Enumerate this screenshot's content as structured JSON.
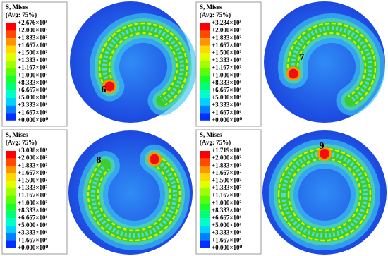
{
  "panels": [
    {
      "legend": {
        "title": "S, Mises",
        "subtitle": "(Avg: 75%)",
        "labels": [
          "+2.676×10⁸",
          "+2.000×10⁷",
          "+1.833×10⁷",
          "+1.667×10⁷",
          "+1.500×10⁷",
          "+1.333×10⁷",
          "+1.167×10⁷",
          "+1.000×10⁷",
          "+8.333×10⁶",
          "+6.667×10⁶",
          "+5.000×10⁶",
          "+3.333×10⁶",
          "+1.667×10⁶",
          "+0.000×10⁰"
        ]
      },
      "marker": "6"
    },
    {
      "legend": {
        "title": "S, Mises",
        "subtitle": "(Avg: 75%)",
        "labels": [
          "+3.234×10⁸",
          "+2.000×10⁷",
          "+1.833×10⁷",
          "+1.667×10⁷",
          "+1.500×10⁷",
          "+1.333×10⁷",
          "+1.167×10⁷",
          "+1.000×10⁷",
          "+8.333×10⁶",
          "+6.667×10⁶",
          "+5.000×10⁶",
          "+3.333×10⁶",
          "+1.667×10⁶",
          "+0.000×10⁰"
        ]
      },
      "marker": "7"
    },
    {
      "legend": {
        "title": "S, Mises",
        "subtitle": "(Avg: 75%)",
        "labels": [
          "+3.038×10⁸",
          "+2.000×10⁷",
          "+1.833×10⁷",
          "+1.667×10⁷",
          "+1.500×10⁷",
          "+1.333×10⁷",
          "+1.167×10⁷",
          "+1.000×10⁷",
          "+8.333×10⁶",
          "+6.667×10⁶",
          "+5.000×10⁶",
          "+3.333×10⁶",
          "+1.667×10⁶",
          "+0.000×10⁰"
        ]
      },
      "marker": "8"
    },
    {
      "legend": {
        "title": "S, Mises",
        "subtitle": "(Avg: 75%)",
        "labels": [
          "+1.719×10⁸",
          "+2.000×10⁷",
          "+1.833×10⁷",
          "+1.667×10⁷",
          "+1.500×10⁷",
          "+1.333×10⁷",
          "+1.167×10⁷",
          "+1.000×10⁷",
          "+8.333×10⁶",
          "+6.667×10⁶",
          "+5.000×10⁶",
          "+3.333×10⁶",
          "+1.667×10⁶",
          "+0.000×10⁰"
        ]
      },
      "marker": "9"
    }
  ]
}
